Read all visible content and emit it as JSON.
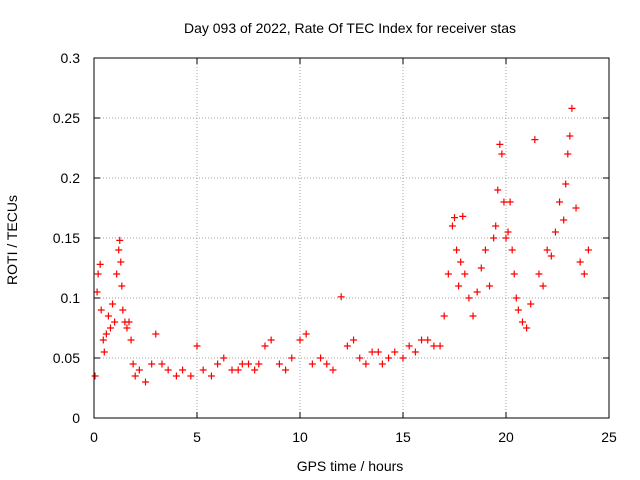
{
  "chart_data": {
    "type": "scatter",
    "title": "Day 093 of 2022, Rate Of TEC Index for receiver stas",
    "xlabel": "GPS time / hours",
    "ylabel": "ROTI / TECUs",
    "xlim": [
      0,
      25
    ],
    "ylim": [
      0,
      0.3
    ],
    "xticks": [
      "0",
      "5",
      "10",
      "15",
      "20",
      "25"
    ],
    "yticks": [
      "0",
      "0.05",
      "0.1",
      "0.15",
      "0.2",
      "0.25",
      "0.3"
    ],
    "grid": true,
    "marker": "plus",
    "color": "#ff0000",
    "series": [
      {
        "x": [
          0.05,
          0.15,
          0.2,
          0.3,
          0.35,
          0.45,
          0.5,
          0.6,
          0.7,
          0.8,
          0.9,
          1.0,
          1.1,
          1.2,
          1.25,
          1.3,
          1.35,
          1.4,
          1.5,
          1.6,
          1.7,
          1.8,
          1.9,
          2.0,
          2.2,
          2.5,
          2.8,
          3.0,
          3.3,
          3.6,
          4.0,
          4.3,
          4.7,
          5.0,
          5.3,
          5.7,
          6.0,
          6.3,
          6.7,
          7.0,
          7.2,
          7.5,
          7.8,
          8.0,
          8.3,
          8.6,
          9.0,
          9.3,
          9.6,
          10.0,
          10.3,
          10.6,
          11.0,
          11.3,
          11.6,
          12.0,
          12.3,
          12.6,
          12.9,
          13.2,
          13.5,
          13.8,
          14.0,
          14.3,
          14.6,
          15.0,
          15.3,
          15.6,
          15.9,
          16.2,
          16.5,
          16.8,
          17.0,
          17.2,
          17.4,
          17.5,
          17.6,
          17.7,
          17.8,
          17.9,
          18.0,
          18.2,
          18.4,
          18.6,
          18.8,
          19.0,
          19.2,
          19.4,
          19.5,
          19.6,
          19.7,
          19.8,
          19.9,
          20.0,
          20.1,
          20.2,
          20.3,
          20.4,
          20.5,
          20.6,
          20.8,
          21.0,
          21.2,
          21.4,
          21.6,
          21.8,
          22.0,
          22.2,
          22.4,
          22.6,
          22.8,
          22.9,
          23.0,
          23.1,
          23.2,
          23.4,
          23.6,
          23.8,
          24.0
        ],
        "y": [
          0.035,
          0.105,
          0.12,
          0.128,
          0.09,
          0.065,
          0.055,
          0.07,
          0.085,
          0.075,
          0.095,
          0.08,
          0.12,
          0.14,
          0.148,
          0.13,
          0.11,
          0.09,
          0.08,
          0.075,
          0.08,
          0.065,
          0.045,
          0.035,
          0.04,
          0.03,
          0.045,
          0.07,
          0.045,
          0.04,
          0.035,
          0.04,
          0.035,
          0.06,
          0.04,
          0.035,
          0.045,
          0.05,
          0.04,
          0.04,
          0.045,
          0.045,
          0.04,
          0.045,
          0.06,
          0.065,
          0.045,
          0.04,
          0.05,
          0.065,
          0.07,
          0.045,
          0.05,
          0.045,
          0.04,
          0.101,
          0.06,
          0.065,
          0.05,
          0.045,
          0.055,
          0.055,
          0.045,
          0.05,
          0.055,
          0.05,
          0.06,
          0.055,
          0.065,
          0.065,
          0.06,
          0.06,
          0.085,
          0.12,
          0.16,
          0.167,
          0.14,
          0.11,
          0.13,
          0.168,
          0.12,
          0.1,
          0.085,
          0.105,
          0.125,
          0.14,
          0.11,
          0.15,
          0.16,
          0.19,
          0.228,
          0.22,
          0.18,
          0.15,
          0.155,
          0.18,
          0.14,
          0.12,
          0.1,
          0.09,
          0.08,
          0.075,
          0.095,
          0.232,
          0.12,
          0.11,
          0.14,
          0.135,
          0.155,
          0.18,
          0.165,
          0.195,
          0.22,
          0.235,
          0.258,
          0.175,
          0.13,
          0.12,
          0.14
        ]
      }
    ]
  }
}
